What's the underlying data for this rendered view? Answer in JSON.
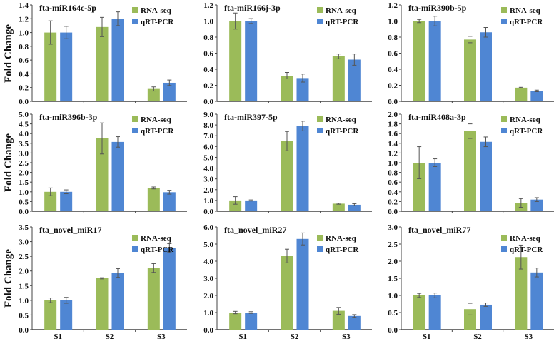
{
  "ylabel": "Fold Change",
  "colors": {
    "rna": "#9bbb59",
    "qrt": "#4f86d3",
    "error": "#555555",
    "axis": "#444444"
  },
  "legend": [
    "RNA-seq",
    "qRT-PCR"
  ],
  "chart_data": [
    {
      "type": "bar",
      "title": "fta-miR164c-5p",
      "categories": [
        "S1",
        "S2",
        "S3"
      ],
      "ylim": [
        0,
        1.4
      ],
      "yticks": [
        "0.0",
        "0.2",
        "0.4",
        "0.6",
        "0.8",
        "1.0",
        "1.2",
        "1.4"
      ],
      "legend_position": "top-right",
      "series": [
        {
          "name": "RNA-seq",
          "values": [
            1.0,
            1.08,
            0.18
          ],
          "errors": [
            0.17,
            0.14,
            0.03
          ]
        },
        {
          "name": "qRT-PCR",
          "values": [
            1.0,
            1.2,
            0.27
          ],
          "errors": [
            0.09,
            0.1,
            0.04
          ]
        }
      ]
    },
    {
      "type": "bar",
      "title": "fta-miR166j-3p",
      "categories": [
        "S1",
        "S2",
        "S3"
      ],
      "ylim": [
        0,
        1.2
      ],
      "yticks": [
        "0.0",
        "0.2",
        "0.4",
        "0.6",
        "0.8",
        "1.0",
        "1.2"
      ],
      "legend_position": "top-right",
      "series": [
        {
          "name": "RNA-seq",
          "values": [
            1.0,
            0.32,
            0.56
          ],
          "errors": [
            0.1,
            0.04,
            0.03
          ]
        },
        {
          "name": "qRT-PCR",
          "values": [
            1.0,
            0.29,
            0.52
          ],
          "errors": [
            0.03,
            0.05,
            0.07
          ]
        }
      ]
    },
    {
      "type": "bar",
      "title": "fta-miR390b-5p",
      "categories": [
        "S1",
        "S2",
        "S3"
      ],
      "ylim": [
        0,
        1.2
      ],
      "yticks": [
        "0.0",
        "0.2",
        "0.4",
        "0.6",
        "0.8",
        "1.0",
        "1.2"
      ],
      "legend_position": "top-right",
      "series": [
        {
          "name": "RNA-seq",
          "values": [
            1.0,
            0.77,
            0.17
          ],
          "errors": [
            0.02,
            0.04,
            0.005
          ]
        },
        {
          "name": "qRT-PCR",
          "values": [
            1.0,
            0.86,
            0.13
          ],
          "errors": [
            0.06,
            0.06,
            0.01
          ]
        }
      ]
    },
    {
      "type": "bar",
      "title": "fta-miR396b-3p",
      "categories": [
        "S1",
        "S2",
        "S3"
      ],
      "ylim": [
        0,
        5.0
      ],
      "yticks": [
        "0.0",
        "0.5",
        "1.0",
        "1.5",
        "2.0",
        "2.5",
        "3.0",
        "3.5",
        "4.0",
        "4.5",
        "5.0"
      ],
      "legend_position": "top-right",
      "series": [
        {
          "name": "RNA-seq",
          "values": [
            1.0,
            3.75,
            1.2
          ],
          "errors": [
            0.2,
            0.8,
            0.05
          ]
        },
        {
          "name": "qRT-PCR",
          "values": [
            1.0,
            3.57,
            0.98
          ],
          "errors": [
            0.1,
            0.27,
            0.1
          ]
        }
      ]
    },
    {
      "type": "bar",
      "title": "fta-miR397-5p",
      "categories": [
        "S1",
        "S2",
        "S3"
      ],
      "ylim": [
        0,
        9.0
      ],
      "yticks": [
        "0.0",
        "1.0",
        "2.0",
        "3.0",
        "4.0",
        "5.0",
        "6.0",
        "7.0",
        "8.0",
        "9.0"
      ],
      "legend_position": "top-right",
      "series": [
        {
          "name": "RNA-seq",
          "values": [
            1.0,
            6.5,
            0.7
          ],
          "errors": [
            0.35,
            0.9,
            0.05
          ]
        },
        {
          "name": "qRT-PCR",
          "values": [
            1.0,
            7.9,
            0.6
          ],
          "errors": [
            0.05,
            0.45,
            0.1
          ]
        }
      ]
    },
    {
      "type": "bar",
      "title": "fta-miR408a-3p",
      "categories": [
        "S1",
        "S2",
        "S3"
      ],
      "ylim": [
        0,
        2.0
      ],
      "yticks": [
        "0.0",
        "0.2",
        "0.4",
        "0.6",
        "0.8",
        "1.0",
        "1.2",
        "1.4",
        "1.6",
        "1.8",
        "2.0"
      ],
      "legend_position": "top-right",
      "series": [
        {
          "name": "RNA-seq",
          "values": [
            1.0,
            1.65,
            0.17
          ],
          "errors": [
            0.33,
            0.15,
            0.09
          ]
        },
        {
          "name": "qRT-PCR",
          "values": [
            1.0,
            1.43,
            0.24
          ],
          "errors": [
            0.08,
            0.1,
            0.04
          ]
        }
      ]
    },
    {
      "type": "bar",
      "title": "fta_novel_miR17",
      "categories": [
        "S1",
        "S2",
        "S3"
      ],
      "ylim": [
        0,
        3.5
      ],
      "yticks": [
        "0.0",
        "0.5",
        "1.0",
        "1.5",
        "2.0",
        "2.5",
        "3.0",
        "3.5"
      ],
      "legend_position": "top-right",
      "series": [
        {
          "name": "RNA-seq",
          "values": [
            1.0,
            1.75,
            2.1
          ],
          "errors": [
            0.08,
            0.02,
            0.15
          ]
        },
        {
          "name": "qRT-PCR",
          "values": [
            1.0,
            1.93,
            2.78
          ],
          "errors": [
            0.1,
            0.15,
            0.15
          ]
        }
      ]
    },
    {
      "type": "bar",
      "title": "fta_novel_miR27",
      "categories": [
        "S1",
        "S2",
        "S3"
      ],
      "ylim": [
        0,
        6.0
      ],
      "yticks": [
        "0.0",
        "1.0",
        "2.0",
        "3.0",
        "4.0",
        "5.0",
        "6.0"
      ],
      "legend_position": "top-right",
      "series": [
        {
          "name": "RNA-seq",
          "values": [
            1.0,
            4.3,
            1.1
          ],
          "errors": [
            0.07,
            0.4,
            0.2
          ]
        },
        {
          "name": "qRT-PCR",
          "values": [
            1.0,
            5.3,
            0.8
          ],
          "errors": [
            0.05,
            0.35,
            0.08
          ]
        }
      ]
    },
    {
      "type": "bar",
      "title": "fta_novel_miR77",
      "categories": [
        "S1",
        "S2",
        "S3"
      ],
      "ylim": [
        0,
        3.0
      ],
      "yticks": [
        "0.0",
        "0.5",
        "1.0",
        "1.5",
        "2.0",
        "2.5",
        "3.0"
      ],
      "legend_position": "top-right",
      "series": [
        {
          "name": "RNA-seq",
          "values": [
            1.0,
            0.6,
            2.12
          ],
          "errors": [
            0.06,
            0.17,
            0.35
          ]
        },
        {
          "name": "qRT-PCR",
          "values": [
            1.0,
            0.73,
            1.67
          ],
          "errors": [
            0.07,
            0.05,
            0.13
          ]
        }
      ]
    }
  ]
}
